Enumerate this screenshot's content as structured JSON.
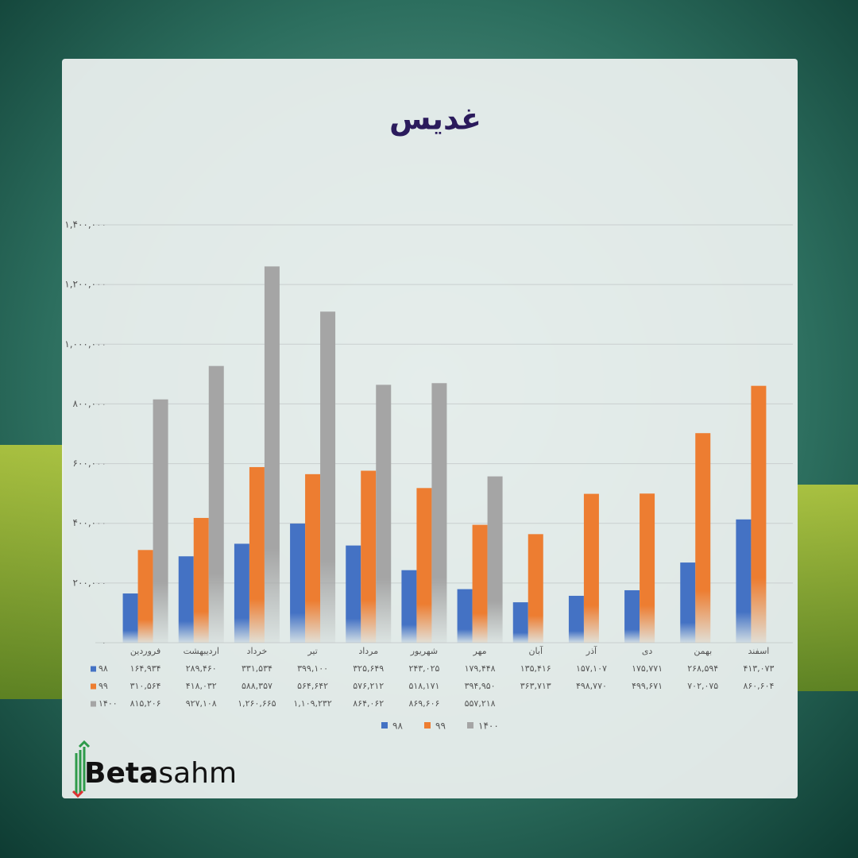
{
  "chart_data": {
    "type": "bar",
    "title": "غدیس",
    "categories": [
      "فروردین",
      "اردیبهشت",
      "خرداد",
      "تیر",
      "مرداد",
      "شهریور",
      "مهر",
      "آبان",
      "آذر",
      "دی",
      "بهمن",
      "اسفند"
    ],
    "series": [
      {
        "name": "۹۸",
        "color": "#4472c4",
        "values": [
          164934,
          289460,
          331534,
          399100,
          325649,
          243025,
          179448,
          135416,
          157107,
          175771,
          268594,
          413073
        ],
        "value_labels": [
          "۱۶۴,۹۳۴",
          "۲۸۹,۴۶۰",
          "۳۳۱,۵۳۴",
          "۳۹۹,۱۰۰",
          "۳۲۵,۶۴۹",
          "۲۴۳,۰۲۵",
          "۱۷۹,۴۴۸",
          "۱۳۵,۴۱۶",
          "۱۵۷,۱۰۷",
          "۱۷۵,۷۷۱",
          "۲۶۸,۵۹۴",
          "۴۱۳,۰۷۳"
        ]
      },
      {
        "name": "۹۹",
        "color": "#ed7d31",
        "values": [
          310564,
          418032,
          588357,
          564642,
          576212,
          518171,
          394950,
          363713,
          498770,
          499671,
          702075,
          860604
        ],
        "value_labels": [
          "۳۱۰,۵۶۴",
          "۴۱۸,۰۳۲",
          "۵۸۸,۳۵۷",
          "۵۶۴,۶۴۲",
          "۵۷۶,۲۱۲",
          "۵۱۸,۱۷۱",
          "۳۹۴,۹۵۰",
          "۳۶۳,۷۱۳",
          "۴۹۸,۷۷۰",
          "۴۹۹,۶۷۱",
          "۷۰۲,۰۷۵",
          "۸۶۰,۶۰۴"
        ]
      },
      {
        "name": "۱۴۰۰",
        "color": "#a5a5a5",
        "values": [
          815206,
          927108,
          1260665,
          1109232,
          864062,
          869606,
          557218,
          null,
          null,
          null,
          null,
          null
        ],
        "value_labels": [
          "۸۱۵,۲۰۶",
          "۹۲۷,۱۰۸",
          "۱,۲۶۰,۶۶۵",
          "۱,۱۰۹,۲۳۲",
          "۸۶۴,۰۶۲",
          "۸۶۹,۶۰۶",
          "۵۵۷,۲۱۸",
          null,
          null,
          null,
          null,
          null
        ]
      }
    ],
    "ylim": [
      0,
      1400000
    ],
    "yticks": [
      {
        "value": 0,
        "label": "۰"
      },
      {
        "value": 200000,
        "label": "۲۰۰,۰۰۰"
      },
      {
        "value": 400000,
        "label": "۴۰۰,۰۰۰"
      },
      {
        "value": 600000,
        "label": "۶۰۰,۰۰۰"
      },
      {
        "value": 800000,
        "label": "۸۰۰,۰۰۰"
      },
      {
        "value": 1000000,
        "label": "۱,۰۰۰,۰۰۰"
      },
      {
        "value": 1200000,
        "label": "۱,۲۰۰,۰۰۰"
      },
      {
        "value": 1400000,
        "label": "۱,۴۰۰,۰۰۰"
      }
    ],
    "grid": true,
    "legend": "bottom",
    "data_table": true
  },
  "logo": {
    "bold": "Beta",
    "light": "sahm"
  }
}
